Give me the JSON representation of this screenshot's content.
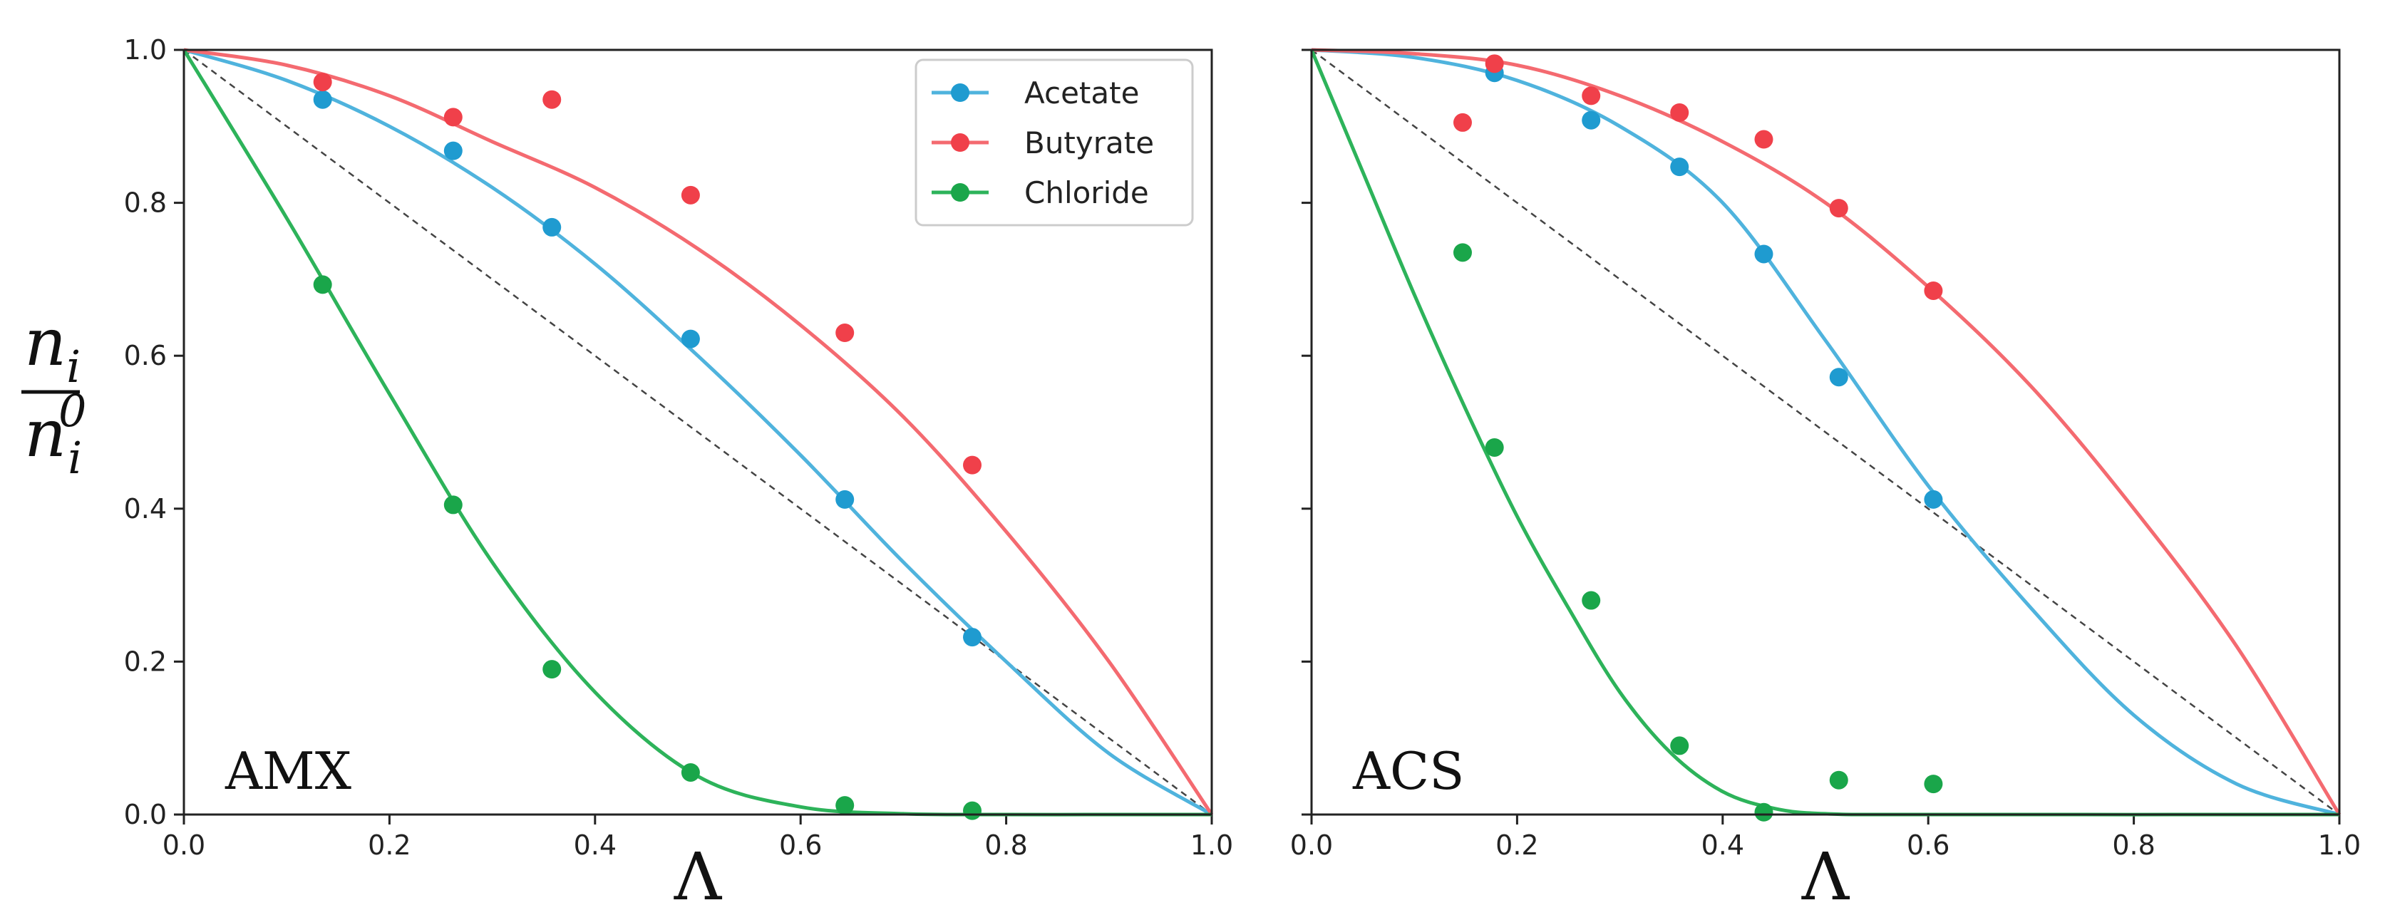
{
  "figure": {
    "ylabel": {
      "main": "n",
      "sub": "i",
      "den_main": "n",
      "den_sub": "i",
      "den_sup": "0"
    }
  },
  "chart_data": [
    {
      "type": "scatter",
      "panel_label": "AMX",
      "xlabel": "Λ",
      "xlim": [
        0,
        1
      ],
      "ylim": [
        0,
        1
      ],
      "xticks": [
        "0.0",
        "0.2",
        "0.4",
        "0.6",
        "0.8",
        "1.0"
      ],
      "yticks": [
        "0.0",
        "0.2",
        "0.4",
        "0.6",
        "0.8",
        "1.0"
      ],
      "legend": "top-right",
      "reference_line": {
        "style": "dashed",
        "from": [
          0,
          1
        ],
        "to": [
          1,
          0
        ]
      },
      "series": [
        {
          "name": "Acetate",
          "color": "#1f9bd0",
          "curve_color": "#4fb3dd",
          "x": [
            0.135,
            0.262,
            0.358,
            0.493,
            0.643,
            0.767
          ],
          "y": [
            0.935,
            0.868,
            0.768,
            0.622,
            0.412,
            0.232
          ],
          "fit": {
            "x": [
              0,
              0.1,
              0.2,
              0.3,
              0.4,
              0.5,
              0.6,
              0.7,
              0.8,
              0.9,
              1.0
            ],
            "y": [
              1.0,
              0.96,
              0.9,
              0.82,
              0.72,
              0.6,
              0.47,
              0.33,
              0.2,
              0.08,
              0.0
            ]
          }
        },
        {
          "name": "Butyrate",
          "color": "#f0404a",
          "curve_color": "#f46a70",
          "x": [
            0.135,
            0.262,
            0.358,
            0.493,
            0.643,
            0.767
          ],
          "y": [
            0.958,
            0.912,
            0.935,
            0.81,
            0.63,
            0.457
          ],
          "fit": {
            "x": [
              0,
              0.1,
              0.2,
              0.3,
              0.4,
              0.5,
              0.6,
              0.7,
              0.8,
              0.9,
              1.0
            ],
            "y": [
              1.0,
              0.98,
              0.94,
              0.88,
              0.82,
              0.74,
              0.64,
              0.52,
              0.37,
              0.2,
              0.0
            ]
          }
        },
        {
          "name": "Chloride",
          "color": "#1aa64a",
          "curve_color": "#2db35a",
          "x": [
            0.135,
            0.262,
            0.358,
            0.493,
            0.643,
            0.767
          ],
          "y": [
            0.693,
            0.405,
            0.19,
            0.055,
            0.012,
            0.005
          ],
          "fit": {
            "x": [
              0,
              0.1,
              0.2,
              0.3,
              0.4,
              0.5,
              0.6,
              0.7,
              0.8,
              0.9,
              1.0
            ],
            "y": [
              1.0,
              0.78,
              0.55,
              0.33,
              0.16,
              0.05,
              0.01,
              0.001,
              0,
              0,
              0
            ]
          }
        }
      ]
    },
    {
      "type": "scatter",
      "panel_label": "ACS",
      "xlabel": "Λ",
      "xlim": [
        0,
        1
      ],
      "ylim": [
        0,
        1
      ],
      "xticks": [
        "0.0",
        "0.2",
        "0.4",
        "0.6",
        "0.8",
        "1.0"
      ],
      "yticks": [
        "0.0",
        "0.2",
        "0.4",
        "0.6",
        "0.8",
        "1.0"
      ],
      "reference_line": {
        "style": "dashed",
        "from": [
          0,
          1
        ],
        "to": [
          1,
          0
        ]
      },
      "series": [
        {
          "name": "Acetate",
          "color": "#1f9bd0",
          "curve_color": "#4fb3dd",
          "x": [
            0.178,
            0.272,
            0.358,
            0.44,
            0.513,
            0.605
          ],
          "y": [
            0.97,
            0.908,
            0.847,
            0.733,
            0.572,
            0.412
          ],
          "fit": {
            "x": [
              0,
              0.1,
              0.2,
              0.3,
              0.4,
              0.5,
              0.6,
              0.7,
              0.8,
              0.9,
              1.0
            ],
            "y": [
              1.0,
              0.99,
              0.96,
              0.9,
              0.8,
              0.62,
              0.43,
              0.27,
              0.13,
              0.04,
              0.0
            ]
          }
        },
        {
          "name": "Butyrate",
          "color": "#f0404a",
          "curve_color": "#f46a70",
          "x": [
            0.147,
            0.178,
            0.272,
            0.358,
            0.44,
            0.513,
            0.605
          ],
          "y": [
            0.905,
            0.982,
            0.94,
            0.918,
            0.883,
            0.793,
            0.685
          ],
          "fit": {
            "x": [
              0,
              0.1,
              0.2,
              0.3,
              0.4,
              0.5,
              0.6,
              0.7,
              0.8,
              0.9,
              1.0
            ],
            "y": [
              1.0,
              0.995,
              0.98,
              0.94,
              0.88,
              0.8,
              0.69,
              0.56,
              0.4,
              0.22,
              0.0
            ]
          }
        },
        {
          "name": "Chloride",
          "color": "#1aa64a",
          "curve_color": "#2db35a",
          "x": [
            0.147,
            0.178,
            0.272,
            0.358,
            0.44,
            0.513,
            0.605
          ],
          "y": [
            0.735,
            0.48,
            0.28,
            0.09,
            0.003,
            0.045,
            0.04
          ],
          "fit": {
            "x": [
              0,
              0.05,
              0.1,
              0.15,
              0.2,
              0.25,
              0.3,
              0.35,
              0.4,
              0.45,
              0.5,
              0.6,
              1.0
            ],
            "y": [
              1.0,
              0.84,
              0.68,
              0.53,
              0.39,
              0.27,
              0.16,
              0.08,
              0.03,
              0.008,
              0.001,
              0,
              0
            ]
          }
        }
      ]
    }
  ]
}
